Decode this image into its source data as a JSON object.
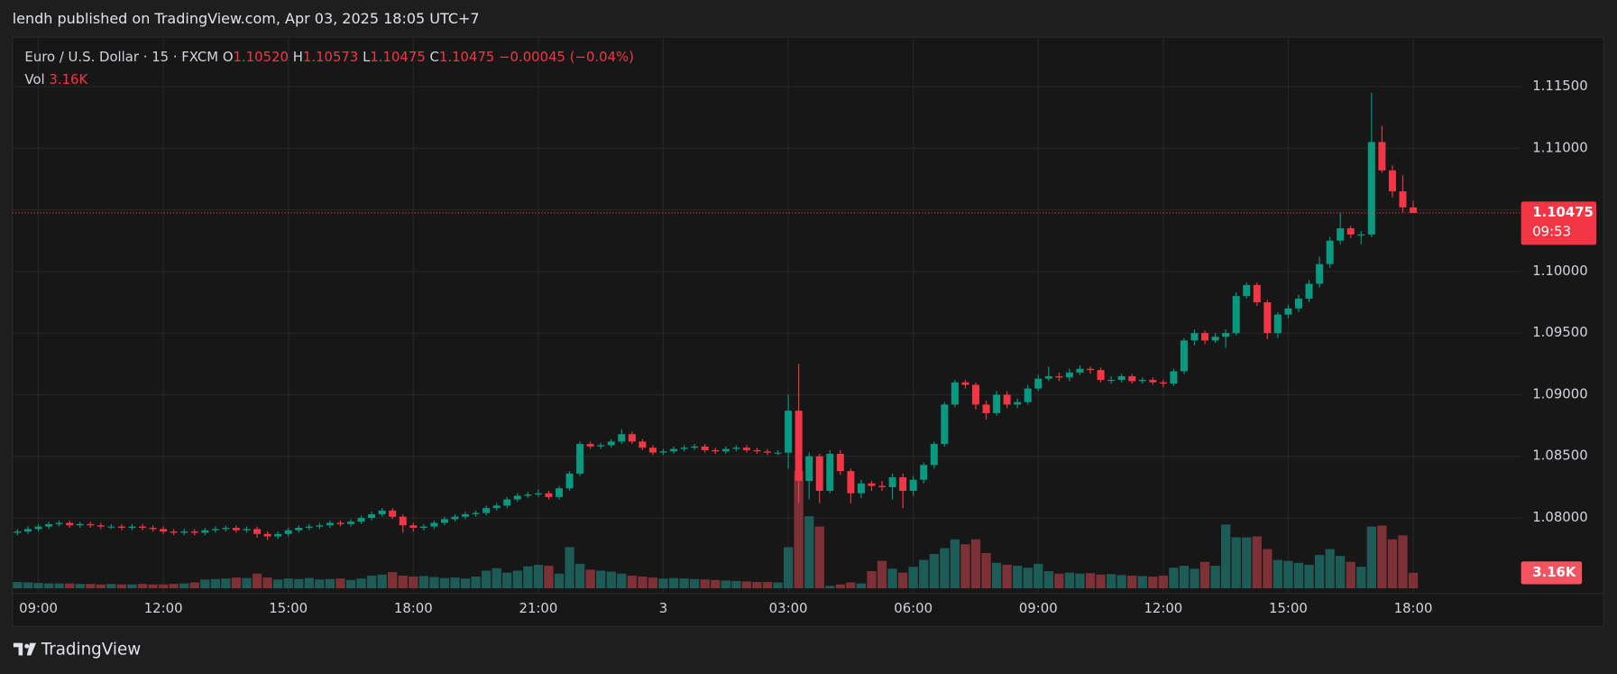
{
  "header": {
    "published": "lendh published on TradingView.com, Apr 03, 2025 18:05 UTC+7"
  },
  "chart_data": {
    "type": "candlestick",
    "symbol": "Euro / U.S. Dollar · 15 · FXCM",
    "o_label": "O",
    "h_label": "H",
    "l_label": "L",
    "c_label": "C",
    "legend_open": {
      "value": 1.1052,
      "label": "1.10520"
    },
    "legend_high": {
      "value": 1.10573,
      "label": "1.10573"
    },
    "legend_low": {
      "value": 1.10475,
      "label": "1.10475"
    },
    "legend_close": {
      "value": 1.10475,
      "label": "1.10475"
    },
    "change": {
      "value": -0.00045,
      "label": "−0.00045"
    },
    "change_pct": {
      "value": -0.04,
      "label": "(−0.04%)"
    },
    "vol_label": "Vol",
    "volume_last": {
      "value": 3.16,
      "label": "3.16K"
    },
    "last_price": {
      "value": 1.10475,
      "label": "1.10475"
    },
    "countdown": "09:53",
    "up_color": "#089981",
    "down_color": "#f23645",
    "volume_up_color": "#1d5c56",
    "volume_down_color": "#7d3136",
    "grid": true,
    "ylim": [
      1.07387,
      1.11901
    ],
    "yticks": [
      {
        "value": 1.08,
        "label": "1.08000"
      },
      {
        "value": 1.085,
        "label": "1.08500"
      },
      {
        "value": 1.09,
        "label": "1.09000"
      },
      {
        "value": 1.095,
        "label": "1.09500"
      },
      {
        "value": 1.1,
        "label": "1.10000"
      },
      {
        "value": 1.105,
        "label": "1.10500"
      },
      {
        "value": 1.11,
        "label": "1.11000"
      },
      {
        "value": 1.115,
        "label": "1.11500"
      }
    ],
    "xticks": [
      {
        "value": 2,
        "label": "09:00"
      },
      {
        "value": 14,
        "label": "12:00"
      },
      {
        "value": 26,
        "label": "15:00"
      },
      {
        "value": 38,
        "label": "18:00"
      },
      {
        "value": 50,
        "label": "21:00"
      },
      {
        "value": 62,
        "label": "3"
      },
      {
        "value": 74,
        "label": "03:00"
      },
      {
        "value": 86,
        "label": "06:00"
      },
      {
        "value": 98,
        "label": "09:00"
      },
      {
        "value": 110,
        "label": "12:00"
      },
      {
        "value": 122,
        "label": "15:00"
      },
      {
        "value": 134,
        "label": "18:00"
      }
    ],
    "open": [
      1.0788,
      1.0789,
      1.0791,
      1.0793,
      1.0795,
      1.0796,
      1.0794,
      1.0795,
      1.0794,
      1.0793,
      1.0793,
      1.0792,
      1.0793,
      1.0792,
      1.0791,
      1.0789,
      1.0788,
      1.0789,
      1.0788,
      1.079,
      1.0791,
      1.0792,
      1.079,
      1.0791,
      1.0787,
      1.0785,
      1.0787,
      1.079,
      1.0792,
      1.0793,
      1.0794,
      1.0796,
      1.0795,
      1.0797,
      1.08,
      1.0803,
      1.0806,
      1.0801,
      1.0794,
      1.0792,
      1.0793,
      1.0796,
      1.0799,
      1.0801,
      1.0803,
      1.0804,
      1.0808,
      1.081,
      1.0815,
      1.0818,
      1.0819,
      1.082,
      1.0817,
      1.0824,
      1.0836,
      1.086,
      1.0858,
      1.0859,
      1.0862,
      1.0868,
      1.0862,
      1.0857,
      1.0853,
      1.0854,
      1.0856,
      1.0857,
      1.0858,
      1.0855,
      1.0854,
      1.0856,
      1.0857,
      1.0855,
      1.0854,
      1.0853,
      1.0853,
      1.0887,
      1.083,
      1.085,
      1.0822,
      1.0852,
      1.0838,
      1.082,
      1.0828,
      1.0826,
      1.0825,
      1.0833,
      1.0822,
      1.0831,
      1.0843,
      1.086,
      1.0892,
      1.091,
      1.0908,
      1.0892,
      1.0885,
      1.09,
      1.0892,
      1.0894,
      1.0905,
      1.0913,
      1.0915,
      1.0914,
      1.0918,
      1.0921,
      1.092,
      1.0912,
      1.0912,
      1.0915,
      1.0911,
      1.0912,
      1.091,
      1.0909,
      1.0919,
      1.0944,
      1.095,
      1.0944,
      1.0947,
      1.095,
      1.098,
      1.0989,
      1.0975,
      1.095,
      1.0965,
      1.097,
      1.0978,
      1.099,
      1.1006,
      1.1025,
      1.1035,
      1.103,
      1.103,
      1.1105,
      1.1082,
      1.1065,
      1.1052
    ],
    "high": [
      1.0791,
      1.0793,
      1.0795,
      1.0797,
      1.0798,
      1.0798,
      1.0797,
      1.0797,
      1.0796,
      1.0795,
      1.0795,
      1.0795,
      1.0795,
      1.0794,
      1.0793,
      1.0791,
      1.0791,
      1.0791,
      1.0792,
      1.0793,
      1.0794,
      1.0794,
      1.0793,
      1.0793,
      1.0789,
      1.0789,
      1.0792,
      1.0794,
      1.0795,
      1.0796,
      1.0798,
      1.0798,
      1.0799,
      1.0802,
      1.0805,
      1.0808,
      1.0808,
      1.0803,
      1.0796,
      1.0795,
      1.0798,
      1.0801,
      1.0803,
      1.0805,
      1.0806,
      1.081,
      1.0812,
      1.0817,
      1.082,
      1.0821,
      1.0823,
      1.0822,
      1.0826,
      1.0838,
      1.0862,
      1.0862,
      1.0861,
      1.0864,
      1.0872,
      1.087,
      1.0864,
      1.0859,
      1.0856,
      1.0858,
      1.0859,
      1.086,
      1.086,
      1.0857,
      1.0858,
      1.0859,
      1.0859,
      1.0857,
      1.0856,
      1.0855,
      1.09,
      1.0925,
      1.0853,
      1.0852,
      1.0855,
      1.0855,
      1.084,
      1.0831,
      1.083,
      1.083,
      1.0836,
      1.0836,
      1.0834,
      1.0845,
      1.0862,
      1.0894,
      1.0912,
      1.0912,
      1.091,
      1.0895,
      1.0903,
      1.0903,
      1.0897,
      1.0908,
      1.0916,
      1.0923,
      1.0918,
      1.0921,
      1.0924,
      1.0923,
      1.0922,
      1.0915,
      1.0917,
      1.0917,
      1.0914,
      1.0914,
      1.0912,
      1.0921,
      1.0946,
      1.0953,
      1.0952,
      1.095,
      1.0953,
      1.0983,
      1.0991,
      1.0991,
      1.0977,
      1.0967,
      1.0973,
      1.0981,
      1.0993,
      1.1012,
      1.1028,
      1.1048,
      1.1037,
      1.1033,
      1.1145,
      1.1118,
      1.1086,
      1.1078,
      1.10573
    ],
    "low": [
      1.0786,
      1.0787,
      1.0789,
      1.0791,
      1.0793,
      1.0792,
      1.0792,
      1.0792,
      1.0791,
      1.0791,
      1.079,
      1.079,
      1.079,
      1.0789,
      1.0787,
      1.0786,
      1.0786,
      1.0786,
      1.0786,
      1.0788,
      1.0789,
      1.0788,
      1.0788,
      1.0784,
      1.0782,
      1.0783,
      1.0785,
      1.0788,
      1.079,
      1.0791,
      1.0792,
      1.0793,
      1.0793,
      1.0795,
      1.0798,
      1.0801,
      1.0799,
      1.0788,
      1.0789,
      1.079,
      1.0791,
      1.0794,
      1.0797,
      1.0799,
      1.0801,
      1.0802,
      1.0806,
      1.0808,
      1.0813,
      1.0816,
      1.0817,
      1.0815,
      1.0815,
      1.0822,
      1.0834,
      1.0856,
      1.0856,
      1.0857,
      1.086,
      1.086,
      1.0855,
      1.0851,
      1.0851,
      1.0852,
      1.0854,
      1.0855,
      1.0853,
      1.0852,
      1.0852,
      1.0854,
      1.0853,
      1.0852,
      1.0851,
      1.0851,
      1.084,
      1.0812,
      1.0815,
      1.0812,
      1.082,
      1.0835,
      1.0812,
      1.0816,
      1.0822,
      1.0822,
      1.0815,
      1.0808,
      1.0818,
      1.0828,
      1.084,
      1.0858,
      1.089,
      1.0905,
      1.0888,
      1.088,
      1.0883,
      1.0889,
      1.0889,
      1.0892,
      1.0903,
      1.0911,
      1.0911,
      1.0911,
      1.0916,
      1.0917,
      1.091,
      1.0909,
      1.091,
      1.0909,
      1.0909,
      1.0908,
      1.0906,
      1.0907,
      1.0917,
      1.094,
      1.0941,
      1.0942,
      1.0938,
      1.0948,
      1.0978,
      1.0972,
      1.0945,
      1.0946,
      1.0962,
      1.0967,
      1.0975,
      1.0987,
      1.1003,
      1.1022,
      1.1027,
      1.1022,
      1.1028,
      1.108,
      1.106,
      1.1048,
      1.10475
    ],
    "close": [
      1.0789,
      1.0791,
      1.0793,
      1.0795,
      1.0796,
      1.0794,
      1.0795,
      1.0794,
      1.0793,
      1.0793,
      1.0792,
      1.0793,
      1.0792,
      1.0791,
      1.0789,
      1.0788,
      1.0789,
      1.0788,
      1.079,
      1.0791,
      1.0792,
      1.079,
      1.0791,
      1.0787,
      1.0785,
      1.0787,
      1.079,
      1.0792,
      1.0793,
      1.0794,
      1.0796,
      1.0795,
      1.0797,
      1.08,
      1.0803,
      1.0806,
      1.0801,
      1.0794,
      1.0792,
      1.0793,
      1.0796,
      1.0799,
      1.0801,
      1.0803,
      1.0804,
      1.0808,
      1.081,
      1.0815,
      1.0818,
      1.0819,
      1.082,
      1.0817,
      1.0824,
      1.0836,
      1.086,
      1.0858,
      1.0859,
      1.0862,
      1.0868,
      1.0862,
      1.0857,
      1.0853,
      1.0854,
      1.0856,
      1.0857,
      1.0858,
      1.0855,
      1.0854,
      1.0856,
      1.0857,
      1.0855,
      1.0854,
      1.0853,
      1.0853,
      1.0887,
      1.083,
      1.085,
      1.0822,
      1.0852,
      1.0838,
      1.082,
      1.0828,
      1.0826,
      1.0825,
      1.0833,
      1.0822,
      1.0831,
      1.0843,
      1.086,
      1.0892,
      1.091,
      1.0908,
      1.0892,
      1.0885,
      1.09,
      1.0892,
      1.0894,
      1.0905,
      1.0913,
      1.0915,
      1.0914,
      1.0918,
      1.0921,
      1.092,
      1.0912,
      1.0912,
      1.0915,
      1.0911,
      1.0912,
      1.091,
      1.0909,
      1.0919,
      1.0944,
      1.095,
      1.0944,
      1.0947,
      1.095,
      1.098,
      1.0989,
      1.0975,
      1.095,
      1.0965,
      1.097,
      1.0978,
      1.099,
      1.1006,
      1.1025,
      1.1035,
      1.103,
      1.103,
      1.1105,
      1.1082,
      1.1065,
      1.1052,
      1.10475
    ],
    "volume": [
      1.3,
      1.2,
      1.1,
      1.0,
      1.0,
      1.0,
      0.9,
      0.9,
      0.8,
      0.9,
      0.8,
      0.8,
      0.9,
      0.8,
      0.8,
      0.9,
      1.0,
      1.2,
      1.8,
      1.9,
      2.0,
      2.2,
      2.1,
      3.0,
      2.2,
      1.8,
      2.0,
      1.9,
      2.1,
      1.8,
      1.9,
      2.0,
      1.7,
      2.0,
      2.6,
      2.8,
      3.3,
      2.6,
      2.4,
      2.5,
      2.3,
      2.1,
      2.2,
      2.0,
      2.4,
      3.6,
      4.1,
      3.2,
      3.6,
      4.5,
      4.8,
      4.6,
      3.0,
      8.4,
      5.0,
      3.8,
      3.6,
      3.4,
      3.0,
      2.6,
      2.4,
      2.2,
      2.0,
      2.1,
      2.0,
      1.9,
      1.8,
      1.7,
      1.6,
      1.5,
      1.4,
      1.3,
      1.3,
      1.2,
      8.4,
      24.0,
      14.7,
      12.6,
      0.5,
      0.8,
      1.2,
      1.0,
      3.5,
      5.6,
      4.0,
      3.2,
      4.4,
      5.8,
      7.0,
      8.2,
      10.0,
      9.0,
      10.0,
      7.2,
      5.2,
      4.8,
      4.6,
      4.2,
      5.0,
      3.5,
      3.0,
      3.2,
      3.0,
      3.1,
      2.8,
      2.9,
      2.7,
      2.6,
      2.5,
      2.4,
      2.6,
      4.2,
      4.6,
      4.0,
      5.4,
      4.6,
      13.0,
      10.4,
      10.4,
      10.6,
      8.0,
      5.8,
      5.6,
      5.2,
      4.8,
      6.8,
      8.0,
      6.6,
      5.4,
      4.4,
      12.6,
      12.8,
      10.0,
      10.8,
      3.16
    ]
  },
  "footer": {
    "brand": "TradingView"
  }
}
